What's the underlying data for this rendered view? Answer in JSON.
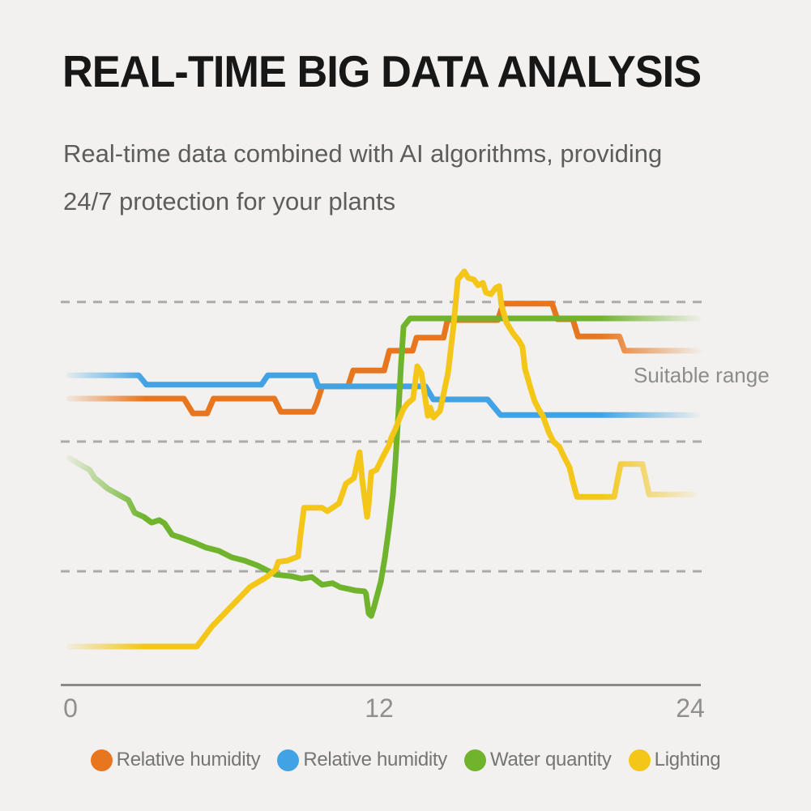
{
  "header": {
    "title": "REAL-TIME BIG DATA ANALYSIS",
    "subtitle_line1": "Real-time data combined with AI algorithms, providing",
    "subtitle_line2": "24/7 protection for your plants"
  },
  "chart_data": {
    "type": "line",
    "title": "",
    "xlabel": "",
    "ylabel": "",
    "x_axis": {
      "range": [
        0,
        24
      ],
      "ticks": [
        0,
        12,
        24
      ]
    },
    "y_axis": {
      "range": [
        0,
        105
      ],
      "tick_labels_visible": false
    },
    "gridlines_y": [
      93.5,
      59.4,
      27.7
    ],
    "gridline_style": "dashed",
    "legend_position": "bottom",
    "line_fade": "both-ends",
    "annotation": {
      "text": "Suitable range"
    },
    "series": [
      {
        "id": "relative-humidity-1",
        "name": "Relative humidity",
        "color": "#e8761e",
        "points": [
          [
            0,
            69.9
          ],
          [
            4.45,
            69.9
          ],
          [
            4.8,
            66.3
          ],
          [
            5.35,
            66.3
          ],
          [
            5.6,
            69.9
          ],
          [
            7.95,
            69.9
          ],
          [
            8.2,
            66.7
          ],
          [
            9.45,
            66.7
          ],
          [
            9.6,
            68.9
          ],
          [
            9.8,
            72.9
          ],
          [
            10.8,
            72.9
          ],
          [
            11.0,
            76.8
          ],
          [
            12.2,
            76.8
          ],
          [
            12.4,
            81.6
          ],
          [
            13.3,
            81.6
          ],
          [
            13.45,
            84.8
          ],
          [
            14.5,
            84.8
          ],
          [
            14.65,
            89.1
          ],
          [
            16.6,
            89.1
          ],
          [
            16.8,
            93.1
          ],
          [
            18.7,
            93.1
          ],
          [
            18.9,
            89.3
          ],
          [
            19.5,
            89.3
          ],
          [
            19.7,
            85.1
          ],
          [
            21.3,
            85.1
          ],
          [
            21.5,
            81.6
          ],
          [
            24.5,
            81.6
          ]
        ]
      },
      {
        "id": "relative-humidity-2",
        "name": "Relative humidity",
        "color": "#41a3e4",
        "points": [
          [
            0,
            75.6
          ],
          [
            2.7,
            75.6
          ],
          [
            3.0,
            73.3
          ],
          [
            7.45,
            73.3
          ],
          [
            7.7,
            75.6
          ],
          [
            9.5,
            75.6
          ],
          [
            9.65,
            72.9
          ],
          [
            13.8,
            72.9
          ],
          [
            14.1,
            69.7
          ],
          [
            16.2,
            69.7
          ],
          [
            16.7,
            65.9
          ],
          [
            24.3,
            65.9
          ]
        ]
      },
      {
        "id": "water-quantity",
        "name": "Water quantity",
        "color": "#6fb42c",
        "points": [
          [
            0,
            55.4
          ],
          [
            0.5,
            53.5
          ],
          [
            0.8,
            52.5
          ],
          [
            1.0,
            50.5
          ],
          [
            1.2,
            49.5
          ],
          [
            1.5,
            47.9
          ],
          [
            1.9,
            46.5
          ],
          [
            2.3,
            45.1
          ],
          [
            2.55,
            42.0
          ],
          [
            2.9,
            41.0
          ],
          [
            3.2,
            39.6
          ],
          [
            3.5,
            40.2
          ],
          [
            3.7,
            39.4
          ],
          [
            4.0,
            36.6
          ],
          [
            4.3,
            36.0
          ],
          [
            4.9,
            34.6
          ],
          [
            5.3,
            33.5
          ],
          [
            5.8,
            32.7
          ],
          [
            6.3,
            31.1
          ],
          [
            6.8,
            30.3
          ],
          [
            7.3,
            29.1
          ],
          [
            8.0,
            26.9
          ],
          [
            8.6,
            26.5
          ],
          [
            9.0,
            25.9
          ],
          [
            9.4,
            26.3
          ],
          [
            9.8,
            24.4
          ],
          [
            10.2,
            24.8
          ],
          [
            10.5,
            23.8
          ],
          [
            10.8,
            23.4
          ],
          [
            11.1,
            23.0
          ],
          [
            11.44,
            22.8
          ],
          [
            11.5,
            22.2
          ],
          [
            11.6,
            17.4
          ],
          [
            11.7,
            16.8
          ],
          [
            11.8,
            18.8
          ],
          [
            12.07,
            25.1
          ],
          [
            12.23,
            31.1
          ],
          [
            12.38,
            38.0
          ],
          [
            12.54,
            46.5
          ],
          [
            12.63,
            53.9
          ],
          [
            12.7,
            61.0
          ],
          [
            12.76,
            67.3
          ],
          [
            12.85,
            78.0
          ],
          [
            12.95,
            87.5
          ],
          [
            13.2,
            89.5
          ],
          [
            24.4,
            89.5
          ]
        ]
      },
      {
        "id": "lighting",
        "name": "Lighting",
        "color": "#f3c617",
        "points": [
          [
            0,
            9.3
          ],
          [
            4.95,
            9.3
          ],
          [
            5.55,
            14.3
          ],
          [
            7.0,
            23.8
          ],
          [
            7.7,
            26.5
          ],
          [
            8.0,
            28.1
          ],
          [
            8.1,
            30.0
          ],
          [
            8.45,
            30.3
          ],
          [
            8.7,
            30.9
          ],
          [
            8.87,
            31.3
          ],
          [
            8.95,
            36.0
          ],
          [
            9.1,
            43.2
          ],
          [
            9.8,
            43.2
          ],
          [
            10.0,
            42.4
          ],
          [
            10.15,
            43.0
          ],
          [
            10.45,
            44.3
          ],
          [
            10.72,
            49.1
          ],
          [
            11.03,
            50.5
          ],
          [
            11.25,
            56.8
          ],
          [
            11.35,
            50.0
          ],
          [
            11.54,
            41.0
          ],
          [
            11.6,
            44.0
          ],
          [
            11.7,
            51.9
          ],
          [
            11.9,
            52.5
          ],
          [
            12.16,
            55.8
          ],
          [
            12.38,
            58.4
          ],
          [
            12.48,
            60.4
          ],
          [
            12.63,
            62.4
          ],
          [
            12.79,
            65.0
          ],
          [
            12.94,
            67.3
          ],
          [
            13.1,
            68.7
          ],
          [
            13.32,
            69.9
          ],
          [
            13.48,
            77.8
          ],
          [
            13.64,
            76.2
          ],
          [
            13.89,
            65.7
          ],
          [
            13.98,
            67.7
          ],
          [
            14.11,
            65.3
          ],
          [
            14.36,
            66.9
          ],
          [
            14.67,
            76.2
          ],
          [
            14.89,
            88.1
          ],
          [
            15.05,
            99.0
          ],
          [
            15.3,
            101.0
          ],
          [
            15.45,
            99.4
          ],
          [
            15.67,
            99.0
          ],
          [
            15.83,
            97.6
          ],
          [
            16.02,
            98.2
          ],
          [
            16.14,
            95.8
          ],
          [
            16.33,
            95.4
          ],
          [
            16.52,
            97.0
          ],
          [
            16.65,
            97.4
          ],
          [
            16.74,
            92.7
          ],
          [
            16.93,
            88.5
          ],
          [
            17.18,
            85.9
          ],
          [
            17.4,
            84.2
          ],
          [
            17.55,
            82.6
          ],
          [
            17.65,
            77.2
          ],
          [
            17.87,
            72.3
          ],
          [
            18.02,
            69.3
          ],
          [
            18.18,
            67.3
          ],
          [
            18.34,
            65.7
          ],
          [
            18.56,
            61.8
          ],
          [
            18.75,
            59.4
          ],
          [
            18.97,
            58.2
          ],
          [
            19.15,
            55.8
          ],
          [
            19.37,
            53.1
          ],
          [
            19.53,
            48.9
          ],
          [
            19.66,
            45.9
          ],
          [
            21.1,
            45.9
          ],
          [
            21.35,
            53.9
          ],
          [
            22.19,
            53.9
          ],
          [
            22.45,
            46.5
          ],
          [
            24.2,
            46.5
          ]
        ]
      }
    ]
  }
}
